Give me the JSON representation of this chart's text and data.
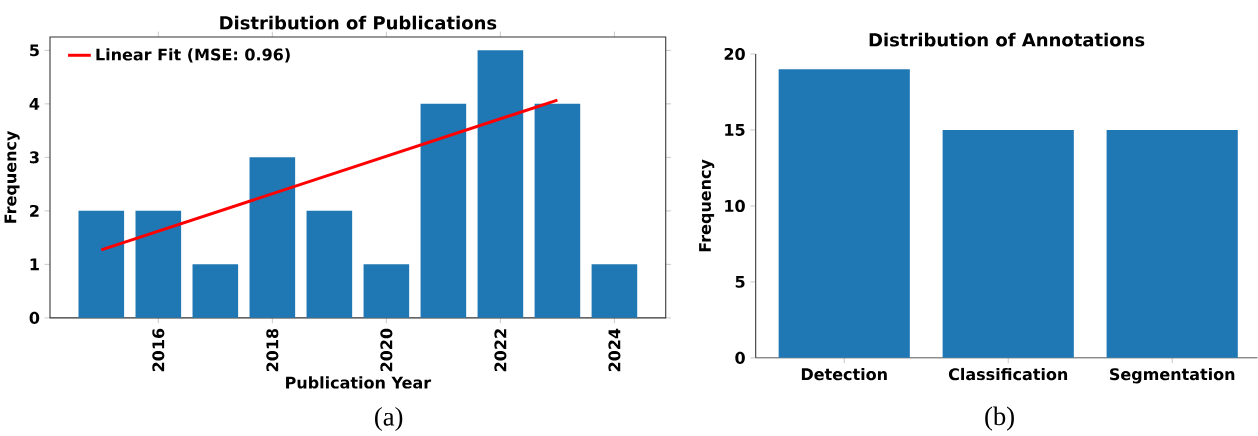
{
  "chart_data": [
    {
      "type": "bar",
      "title": "Distribution of Publications",
      "xlabel": "Publication Year",
      "ylabel": "Frequency",
      "xlim": [
        2014.1,
        2024.9
      ],
      "xticks": [
        2016,
        2018,
        2020,
        2022,
        2024
      ],
      "ylim": [
        0,
        5.25
      ],
      "yticks": [
        0,
        1,
        2,
        3,
        4,
        5
      ],
      "legend": "top left",
      "annotations": [
        "(a)"
      ],
      "series": [
        {
          "color": "#1f77b4",
          "x": [
            2015,
            2016,
            2017,
            2018,
            2019,
            2020,
            2021,
            2022,
            2023,
            2024
          ],
          "values": [
            2,
            2,
            1,
            3,
            2,
            1,
            4,
            5,
            4,
            1
          ]
        },
        {
          "type": "line",
          "name": "Linear Fit (MSE: 0.96)",
          "color": "#ff0000",
          "x": [
            2015,
            2023
          ],
          "values": [
            1.27,
            4.07
          ]
        }
      ]
    },
    {
      "type": "bar",
      "title": "Distribution of Annotations",
      "ylabel": "Frequency",
      "categories": [
        "Detection",
        "Classification",
        "Segmentation"
      ],
      "ylim": [
        0,
        20
      ],
      "yticks": [
        0,
        5,
        10,
        15,
        20
      ],
      "annotations": [
        "(b)"
      ],
      "series": [
        {
          "color": "#1f77b4",
          "values": [
            19,
            15,
            15
          ]
        }
      ]
    }
  ]
}
